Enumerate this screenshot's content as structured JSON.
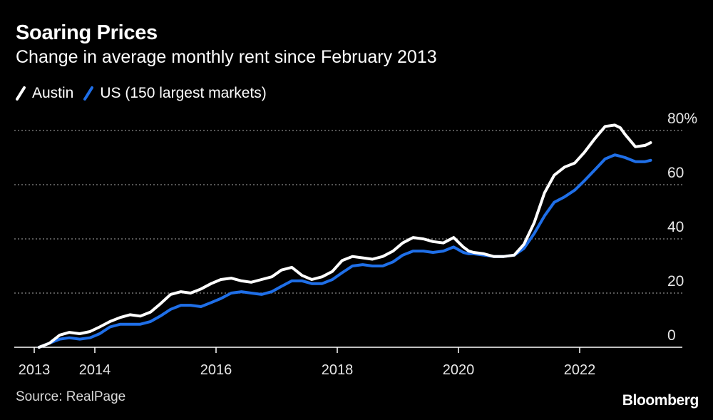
{
  "header": {
    "title": "Soaring Prices",
    "subtitle": "Change in average monthly rent since February 2013"
  },
  "footer": {
    "source": "Source: RealPage",
    "brand": "Bloomberg"
  },
  "colors": {
    "background": "#000000",
    "austin": "#ffffff",
    "us": "#1f6fe8",
    "grid": "#8a8a8a",
    "axis": "#ffffff"
  },
  "chart_data": {
    "type": "line",
    "title": "Soaring Prices",
    "subtitle": "Change in average monthly rent since February 2013",
    "xlabel": "",
    "ylabel": "",
    "ylim": [
      0,
      80
    ],
    "xlim": [
      2013.0,
      2023.6
    ],
    "grid": true,
    "legend_position": "top-left",
    "y_ticks": [
      {
        "value": 0,
        "label": "0"
      },
      {
        "value": 20,
        "label": "20"
      },
      {
        "value": 40,
        "label": "40"
      },
      {
        "value": 60,
        "label": "60"
      },
      {
        "value": 80,
        "label": "80%"
      }
    ],
    "x_ticks": [
      {
        "value": 2013.0,
        "label": "2013"
      },
      {
        "value": 2014.0,
        "label": "2014"
      },
      {
        "value": 2016.0,
        "label": "2016"
      },
      {
        "value": 2018.0,
        "label": "2018"
      },
      {
        "value": 2020.0,
        "label": "2020"
      },
      {
        "value": 2022.0,
        "label": "2022"
      }
    ],
    "series": [
      {
        "name": "Austin",
        "color": "#ffffff",
        "x": [
          2013.08,
          2013.25,
          2013.42,
          2013.58,
          2013.75,
          2013.92,
          2014.08,
          2014.25,
          2014.42,
          2014.58,
          2014.75,
          2014.92,
          2015.08,
          2015.25,
          2015.42,
          2015.58,
          2015.75,
          2015.92,
          2016.08,
          2016.25,
          2016.42,
          2016.58,
          2016.75,
          2016.92,
          2017.08,
          2017.25,
          2017.42,
          2017.58,
          2017.75,
          2017.92,
          2018.08,
          2018.25,
          2018.42,
          2018.58,
          2018.75,
          2018.92,
          2019.08,
          2019.25,
          2019.42,
          2019.58,
          2019.75,
          2019.92,
          2020.08,
          2020.17,
          2020.25,
          2020.42,
          2020.58,
          2020.75,
          2020.92,
          2021.08,
          2021.25,
          2021.42,
          2021.58,
          2021.75,
          2021.92,
          2022.08,
          2022.25,
          2022.42,
          2022.58,
          2022.67,
          2022.75,
          2022.92,
          2023.08,
          2023.17
        ],
        "values": [
          0,
          1.5,
          4.5,
          5.5,
          5,
          5.8,
          7.5,
          9.5,
          11,
          12,
          11.5,
          13,
          16,
          19.5,
          20.5,
          20,
          21.5,
          23.5,
          25,
          25.5,
          24.5,
          24,
          25,
          26,
          28.5,
          29.5,
          26.5,
          25,
          26,
          28,
          32,
          33.5,
          33,
          32.5,
          33.5,
          35.5,
          38.5,
          40.5,
          40,
          39,
          38.5,
          40.5,
          37,
          35.5,
          35,
          34.5,
          33.5,
          33.5,
          34,
          38,
          46,
          57,
          63.5,
          66.5,
          68,
          72,
          77,
          81.5,
          82,
          81,
          78.5,
          74,
          74.5,
          75.5
        ]
      },
      {
        "name": "US (150 largest markets)",
        "color": "#1f6fe8",
        "x": [
          2013.08,
          2013.25,
          2013.42,
          2013.58,
          2013.75,
          2013.92,
          2014.08,
          2014.25,
          2014.42,
          2014.58,
          2014.75,
          2014.92,
          2015.08,
          2015.25,
          2015.42,
          2015.58,
          2015.75,
          2015.92,
          2016.08,
          2016.25,
          2016.42,
          2016.58,
          2016.75,
          2016.92,
          2017.08,
          2017.25,
          2017.42,
          2017.58,
          2017.75,
          2017.92,
          2018.08,
          2018.25,
          2018.42,
          2018.58,
          2018.75,
          2018.92,
          2019.08,
          2019.25,
          2019.42,
          2019.58,
          2019.75,
          2019.92,
          2020.08,
          2020.17,
          2020.25,
          2020.42,
          2020.58,
          2020.75,
          2020.92,
          2021.08,
          2021.25,
          2021.42,
          2021.58,
          2021.75,
          2021.92,
          2022.08,
          2022.25,
          2022.42,
          2022.58,
          2022.67,
          2022.75,
          2022.92,
          2023.08,
          2023.17
        ],
        "values": [
          0,
          1.5,
          3,
          3.5,
          3,
          3.5,
          5,
          7.5,
          8.5,
          8.5,
          8.5,
          9.5,
          11.5,
          14,
          15.5,
          15.5,
          15,
          16.5,
          18,
          20,
          20.5,
          20,
          19.5,
          20.5,
          22.5,
          24.5,
          24.5,
          23.5,
          23.5,
          25,
          27.5,
          30,
          30.5,
          30,
          30,
          31.5,
          34,
          35.5,
          35.5,
          35,
          35.5,
          37,
          35,
          34.5,
          34.5,
          34,
          33.5,
          33.5,
          34,
          36.5,
          42,
          48.5,
          53.5,
          55.5,
          58,
          61.5,
          65.5,
          69.5,
          71,
          70.5,
          70,
          68.5,
          68.5,
          69
        ]
      }
    ]
  }
}
